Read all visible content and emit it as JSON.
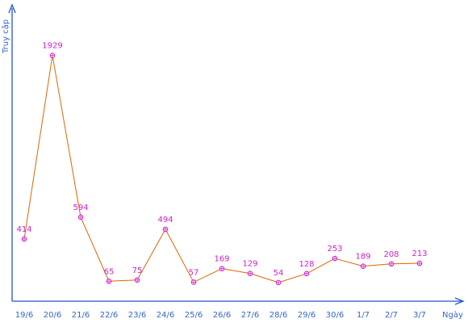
{
  "chart_data": {
    "type": "line",
    "xlabel": "Ngày",
    "ylabel": "Truy cập",
    "categories": [
      "19/6",
      "20/6",
      "21/6",
      "22/6",
      "23/6",
      "24/6",
      "25/6",
      "26/6",
      "27/6",
      "28/6",
      "29/6",
      "30/6",
      "1/7",
      "2/7",
      "3/7"
    ],
    "values": [
      414,
      1929,
      594,
      65,
      75,
      494,
      57,
      169,
      129,
      54,
      128,
      253,
      189,
      208,
      213
    ],
    "ylim": [
      0,
      2000
    ],
    "grid": false,
    "legend": "none",
    "colors": {
      "line": "#dd6600",
      "marker": "#cc22cc",
      "axis": "#2255cc",
      "text": "#3366cc",
      "data_label": "#cc22cc"
    }
  }
}
